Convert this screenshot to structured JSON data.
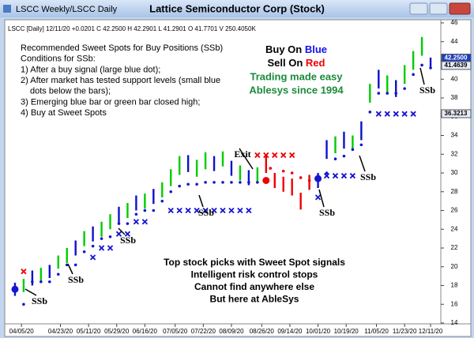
{
  "window": {
    "tab": "LSCC Weekly/LSCC Daily",
    "title": "Lattice Semiconductor Corp (Stock)"
  },
  "chart_data": {
    "type": "ohlc",
    "info": "LSCC [Daily] 12/11/20 +0.0201 C 42.2500 H 42.2901 L 41.2901 O 41.7701 V 250.4050K",
    "xlim": [
      -4,
      196
    ],
    "ylim": [
      14,
      46
    ],
    "yticks": [
      14,
      16,
      18,
      20,
      22,
      24,
      26,
      28,
      30,
      32,
      34,
      36,
      38,
      40,
      42,
      44,
      46
    ],
    "xticks": [
      {
        "value": 3,
        "label": "04/05/20"
      },
      {
        "value": 21,
        "label": "04/23/20"
      },
      {
        "value": 34,
        "label": "05/11/20"
      },
      {
        "value": 47,
        "label": "05/29/20"
      },
      {
        "value": 60,
        "label": "06/16/20"
      },
      {
        "value": 74,
        "label": "07/05/20"
      },
      {
        "value": 87,
        "label": "07/22/20"
      },
      {
        "value": 100,
        "label": "08/09/20"
      },
      {
        "value": 114,
        "label": "08/26/20"
      },
      {
        "value": 127,
        "label": "09/14/20"
      },
      {
        "value": 140,
        "label": "10/01/20"
      },
      {
        "value": 153,
        "label": "10/19/20"
      },
      {
        "value": 167,
        "label": "11/05/20"
      },
      {
        "value": 180,
        "label": "11/23/20"
      },
      {
        "value": 192,
        "label": "12/11/20"
      }
    ],
    "grid": false,
    "bars": {
      "x": [
        0,
        4,
        8,
        12,
        16,
        20,
        24,
        28,
        32,
        36,
        40,
        44,
        48,
        52,
        56,
        60,
        64,
        68,
        72,
        76,
        80,
        84,
        88,
        92,
        96,
        100,
        104,
        108,
        112,
        116,
        120,
        124,
        128,
        132,
        136,
        140,
        144,
        148,
        152,
        156,
        160,
        164,
        168,
        172,
        176,
        180,
        184,
        188,
        192
      ],
      "high": [
        18.3,
        18.7,
        19.6,
        19.9,
        20.2,
        21.2,
        22.0,
        22.8,
        23.8,
        24.3,
        24.8,
        25.6,
        26.4,
        26.8,
        27.6,
        27.8,
        28.3,
        29.0,
        30.4,
        31.8,
        31.9,
        31.4,
        32.2,
        31.8,
        32.3,
        31.3,
        30.8,
        30.3,
        30.6,
        32.0,
        30.0,
        29.6,
        29.4,
        27.9,
        29.8,
        30.0,
        33.5,
        33.9,
        34.4,
        34.0,
        35.5,
        39.5,
        41.0,
        40.4,
        39.9,
        41.5,
        43.0,
        44.5,
        42.3
      ],
      "low": [
        16.9,
        17.3,
        18.0,
        18.5,
        18.8,
        19.8,
        20.4,
        21.2,
        22.2,
        22.7,
        23.2,
        24.0,
        24.6,
        25.2,
        26.0,
        26.2,
        26.7,
        27.4,
        28.6,
        29.8,
        30.1,
        29.6,
        30.4,
        30.2,
        30.7,
        29.7,
        29.2,
        28.7,
        29.0,
        30.0,
        28.4,
        28.0,
        27.6,
        26.1,
        28.2,
        28.4,
        31.5,
        32.1,
        32.6,
        32.4,
        33.5,
        37.5,
        39.0,
        38.6,
        38.1,
        39.5,
        41.0,
        42.5,
        41.3
      ],
      "colors": [
        "#1010cc",
        "#00cc00",
        "#1010cc",
        "#00cc00",
        "#1010cc",
        "#00cc00",
        "#00cc00",
        "#1010cc",
        "#00cc00",
        "#1010cc",
        "#00cc00",
        "#00cc00",
        "#1010cc",
        "#00cc00",
        "#1010cc",
        "#00cc00",
        "#1010cc",
        "#00cc00",
        "#00cc00",
        "#00cc00",
        "#1010cc",
        "#00cc00",
        "#00cc00",
        "#1010cc",
        "#00cc00",
        "#1010cc",
        "#00cc00",
        "#1010cc",
        "#00cc00",
        "#ee0000",
        "#ee0000",
        "#ee0000",
        "#ee0000",
        "#ee0000",
        "#ee0000",
        "#1010cc",
        "#1010cc",
        "#00cc00",
        "#1010cc",
        "#00cc00",
        "#1010cc",
        "#00cc00",
        "#1010cc",
        "#00cc00",
        "#1010cc",
        "#00cc00",
        "#00cc00",
        "#00cc00",
        "#1010cc"
      ]
    },
    "stop_dots": {
      "color": "#1515d0",
      "x": [
        4,
        8,
        12,
        16,
        20,
        24,
        28,
        32,
        36,
        40,
        44,
        48,
        52,
        56,
        60,
        64,
        68,
        72,
        76,
        80,
        84,
        88,
        92,
        96,
        100,
        104,
        108,
        112,
        144,
        148,
        152,
        156,
        160,
        164,
        168,
        172,
        176,
        180,
        184,
        188,
        192
      ],
      "y": [
        16.0,
        18.4,
        18.4,
        18.4,
        19.2,
        20.2,
        20.2,
        21.6,
        22.2,
        23.0,
        23.2,
        24.6,
        24.6,
        25.6,
        26.0,
        26.0,
        27.0,
        28.0,
        28.6,
        28.8,
        28.8,
        29.0,
        29.0,
        29.0,
        29.0,
        29.0,
        29.0,
        29.0,
        30.0,
        31.5,
        31.8,
        32.5,
        33.0,
        36.5,
        38.5,
        38.5,
        38.5,
        39.0,
        40.5,
        41.5,
        41.2
      ]
    },
    "short_dots": {
      "color": "#ee0000",
      "x": [
        118,
        124,
        128,
        132,
        136
      ],
      "y": [
        30.5,
        30.2,
        30.0,
        29.5,
        29.2
      ]
    },
    "x_marks": {
      "color": "#1515d0",
      "x": [
        36,
        40,
        44,
        48,
        52,
        56,
        60,
        72,
        76,
        80,
        84,
        88,
        92,
        96,
        100,
        104,
        108,
        140,
        144,
        148,
        152,
        156,
        168,
        172,
        176,
        180,
        184
      ],
      "y": [
        21.0,
        22.0,
        22.0,
        23.5,
        23.5,
        24.8,
        24.8,
        26.0,
        26.0,
        26.0,
        26.0,
        26.0,
        26.0,
        26.0,
        26.0,
        26.0,
        26.0,
        27.4,
        29.7,
        29.7,
        29.7,
        29.7,
        36.3,
        36.3,
        36.3,
        36.3,
        36.3
      ]
    },
    "x_marks_red": {
      "color": "#ee0000",
      "x": [
        4,
        112,
        116,
        120,
        124,
        128
      ],
      "y": [
        19.5,
        31.9,
        31.9,
        31.9,
        31.9,
        31.9
      ]
    },
    "signals": {
      "x": [
        0,
        116,
        140
      ],
      "y": [
        17.6,
        29.2,
        29.4
      ],
      "colors": [
        "#1515d0",
        "#ee0000",
        "#1515d0"
      ]
    },
    "price_markers": [
      {
        "value": 42.25,
        "label": "42.2500"
      },
      {
        "value": 41.4639,
        "label": "41.4639"
      },
      {
        "value": 36.3213,
        "label": "36.3213"
      }
    ],
    "notes": [
      "Recommended Sweet Spots for Buy Positions (SSb)",
      "Conditions for SSb:",
      "1) After a buy signal (large blue dot);",
      "2) After market has tested support levels (small blue",
      "dots below the bars);",
      "3) Emerging blue bar or green bar closed high;",
      "4) Buy at Sweet Spots"
    ],
    "promo": {
      "buy": "Buy On ",
      "buy_color": "Blue",
      "sell": "Sell On ",
      "sell_color": "Red",
      "line1": "Trading made easy",
      "line2": "Ablesys since 1994"
    },
    "footer": [
      "Top stock picks with Sweet Spot signals",
      "Intelligent risk control stops",
      "Cannot find anywhere else",
      "But here at AbleSys"
    ],
    "labels": [
      "SSb",
      "SSb",
      "SSb",
      "SSb",
      "SSb",
      "SSb",
      "SSb",
      "Exit"
    ]
  }
}
